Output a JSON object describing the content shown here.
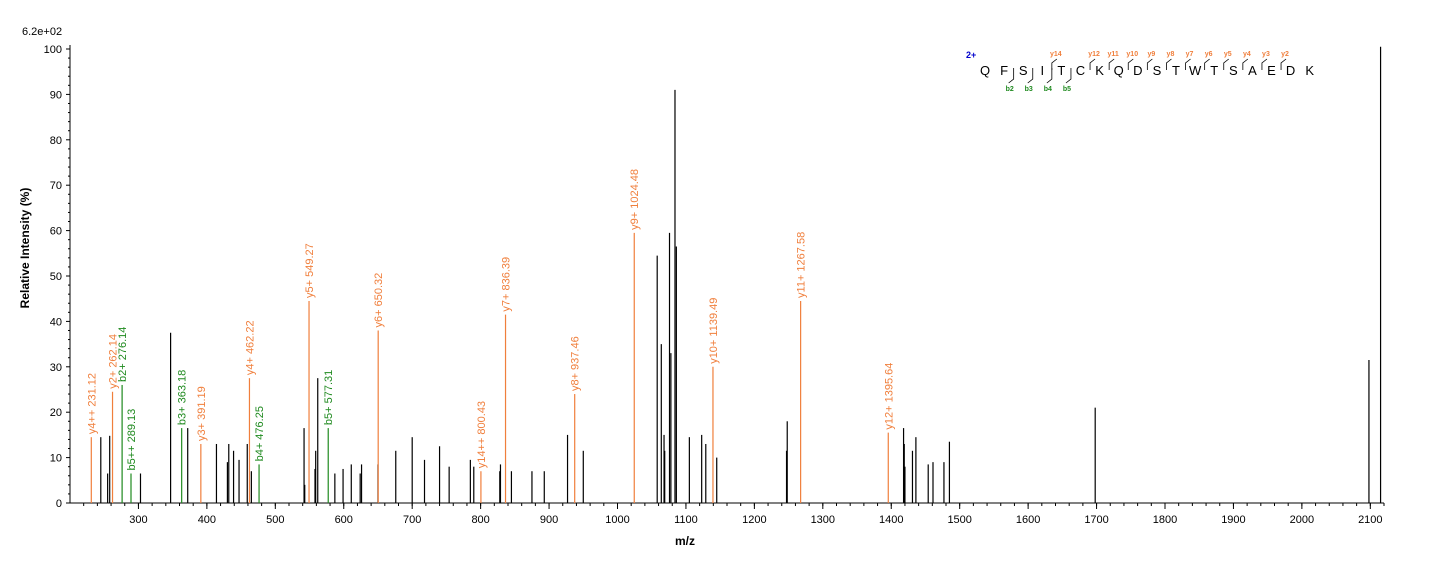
{
  "chart_data": {
    "type": "bar",
    "scale_label": "6.2e+02",
    "xlabel": "m/z",
    "ylabel": "Relative   Intensity (%)",
    "xlim": [
      200,
      2120
    ],
    "ylim": [
      0,
      100
    ],
    "x_ticks": [
      300,
      400,
      500,
      600,
      700,
      800,
      900,
      1000,
      1100,
      1200,
      1300,
      1400,
      1500,
      1600,
      1700,
      1800,
      1900,
      2000,
      2100
    ],
    "y_ticks": [
      0,
      10,
      20,
      30,
      40,
      50,
      60,
      70,
      80,
      90,
      100
    ],
    "colors": {
      "unannotated": "#000000",
      "y_ion": "#f07f3c",
      "b_ion": "#1f8a1f",
      "charge": "#0000cc"
    },
    "unannotated_peaks": [
      {
        "mz": 245,
        "y": 14.5
      },
      {
        "mz": 255,
        "y": 6.5
      },
      {
        "mz": 258,
        "y": 14.8
      },
      {
        "mz": 303,
        "y": 6.5
      },
      {
        "mz": 347,
        "y": 37.5
      },
      {
        "mz": 372,
        "y": 16.5
      },
      {
        "mz": 414,
        "y": 13
      },
      {
        "mz": 430,
        "y": 9
      },
      {
        "mz": 432,
        "y": 13
      },
      {
        "mz": 439,
        "y": 11.5
      },
      {
        "mz": 447,
        "y": 9.5
      },
      {
        "mz": 459,
        "y": 13
      },
      {
        "mz": 465,
        "y": 7
      },
      {
        "mz": 542,
        "y": 16.5
      },
      {
        "mz": 543,
        "y": 4
      },
      {
        "mz": 558,
        "y": 7.5
      },
      {
        "mz": 559,
        "y": 11.5
      },
      {
        "mz": 562,
        "y": 27.5
      },
      {
        "mz": 587,
        "y": 6.5
      },
      {
        "mz": 599,
        "y": 7.5
      },
      {
        "mz": 611,
        "y": 8.5
      },
      {
        "mz": 624,
        "y": 6.5
      },
      {
        "mz": 626,
        "y": 8.5
      },
      {
        "mz": 650,
        "y": 8.5
      },
      {
        "mz": 676,
        "y": 11.5
      },
      {
        "mz": 700,
        "y": 14.5
      },
      {
        "mz": 718,
        "y": 9.5
      },
      {
        "mz": 740,
        "y": 12.5
      },
      {
        "mz": 754,
        "y": 8
      },
      {
        "mz": 785,
        "y": 9.5
      },
      {
        "mz": 790,
        "y": 8
      },
      {
        "mz": 828,
        "y": 7
      },
      {
        "mz": 829,
        "y": 8.5
      },
      {
        "mz": 845,
        "y": 7
      },
      {
        "mz": 875,
        "y": 7
      },
      {
        "mz": 893,
        "y": 7
      },
      {
        "mz": 927,
        "y": 15
      },
      {
        "mz": 950,
        "y": 11.5
      },
      {
        "mz": 1058,
        "y": 54.5
      },
      {
        "mz": 1064,
        "y": 35
      },
      {
        "mz": 1068,
        "y": 15
      },
      {
        "mz": 1069,
        "y": 11.5
      },
      {
        "mz": 1076,
        "y": 59.5
      },
      {
        "mz": 1078,
        "y": 33
      },
      {
        "mz": 1084,
        "y": 91
      },
      {
        "mz": 1086,
        "y": 56.5
      },
      {
        "mz": 1105,
        "y": 14.5
      },
      {
        "mz": 1123,
        "y": 15
      },
      {
        "mz": 1129,
        "y": 13
      },
      {
        "mz": 1145,
        "y": 10
      },
      {
        "mz": 1247,
        "y": 11.5
      },
      {
        "mz": 1248,
        "y": 18
      },
      {
        "mz": 1418,
        "y": 16.5
      },
      {
        "mz": 1419,
        "y": 13
      },
      {
        "mz": 1420,
        "y": 8
      },
      {
        "mz": 1431,
        "y": 11.5
      },
      {
        "mz": 1436,
        "y": 14.5
      },
      {
        "mz": 1454,
        "y": 8.5
      },
      {
        "mz": 1461,
        "y": 9
      },
      {
        "mz": 1477,
        "y": 9
      },
      {
        "mz": 1485,
        "y": 13.5
      },
      {
        "mz": 1698,
        "y": 21
      },
      {
        "mz": 2098,
        "y": 31.5
      },
      {
        "mz": 2115,
        "y": 100.5
      }
    ],
    "annotated_peaks": [
      {
        "mz": 231.12,
        "y": 14.5,
        "ion": "y",
        "label": "y4++ 231.12"
      },
      {
        "mz": 262.14,
        "y": 24.5,
        "ion": "y",
        "label": "y2+ 262.14"
      },
      {
        "mz": 276.14,
        "y": 26,
        "ion": "b",
        "label": "b2+ 276.14"
      },
      {
        "mz": 289.13,
        "y": 6.5,
        "ion": "b",
        "label": "b5++ 289.13"
      },
      {
        "mz": 363.18,
        "y": 16.5,
        "ion": "b",
        "label": "b3+ 363.18"
      },
      {
        "mz": 391.19,
        "y": 13,
        "ion": "y",
        "label": "y3+ 391.19"
      },
      {
        "mz": 462.22,
        "y": 27.5,
        "ion": "y",
        "label": "y4+ 462.22"
      },
      {
        "mz": 476.25,
        "y": 8.5,
        "ion": "b",
        "label": "b4+ 476.25"
      },
      {
        "mz": 549.27,
        "y": 44.5,
        "ion": "y",
        "label": "y5+ 549.27"
      },
      {
        "mz": 577.31,
        "y": 16.5,
        "ion": "b",
        "label": "b5+ 577.31"
      },
      {
        "mz": 650.32,
        "y": 38,
        "ion": "y",
        "label": "y6+ 650.32"
      },
      {
        "mz": 800.43,
        "y": 7,
        "ion": "y",
        "label": "y14++ 800.43"
      },
      {
        "mz": 836.39,
        "y": 41.5,
        "ion": "y",
        "label": "y7+ 836.39"
      },
      {
        "mz": 937.46,
        "y": 24,
        "ion": "y",
        "label": "y8+ 937.46"
      },
      {
        "mz": 1024.48,
        "y": 59.5,
        "ion": "y",
        "label": "y9+ 1024.48"
      },
      {
        "mz": 1139.49,
        "y": 30,
        "ion": "y",
        "label": "y10+ 1139.49"
      },
      {
        "mz": 1267.58,
        "y": 44.5,
        "ion": "y",
        "label": "y11+ 1267.58"
      },
      {
        "mz": 1395.64,
        "y": 15.5,
        "ion": "y",
        "label": "y12+ 1395.64"
      }
    ],
    "peptide": {
      "charge": "2+",
      "residues": [
        "Q",
        "F",
        "S",
        "I",
        "T",
        "C",
        "K",
        "Q",
        "D",
        "S",
        "T",
        "W",
        "T",
        "S",
        "A",
        "E",
        "D",
        "K"
      ],
      "y_ions": [
        {
          "after": 4,
          "label": "y14"
        },
        {
          "after": 6,
          "label": "y12"
        },
        {
          "after": 7,
          "label": "y11"
        },
        {
          "after": 8,
          "label": "y10"
        },
        {
          "after": 9,
          "label": "y9"
        },
        {
          "after": 10,
          "label": "y8"
        },
        {
          "after": 11,
          "label": "y7"
        },
        {
          "after": 12,
          "label": "y6"
        },
        {
          "after": 13,
          "label": "y5"
        },
        {
          "after": 14,
          "label": "y4"
        },
        {
          "after": 15,
          "label": "y3"
        },
        {
          "after": 16,
          "label": "y2"
        }
      ],
      "b_ions": [
        {
          "after": 2,
          "label": "b2"
        },
        {
          "after": 3,
          "label": "b3"
        },
        {
          "after": 4,
          "label": "b4"
        },
        {
          "after": 5,
          "label": "b5"
        }
      ]
    }
  }
}
